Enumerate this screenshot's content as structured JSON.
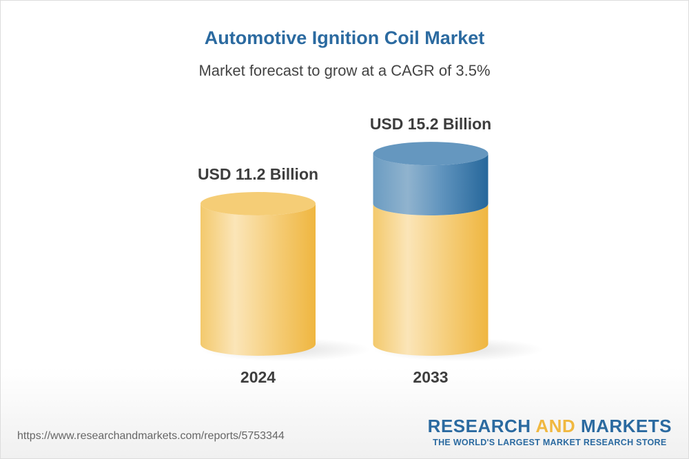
{
  "title": "Automotive Ignition Coil Market",
  "subtitle": "Market forecast to grow at a CAGR of 3.5%",
  "chart_data": {
    "type": "bar",
    "style": "3d-cylinder",
    "categories": [
      "2024",
      "2033"
    ],
    "values": [
      11.2,
      15.2
    ],
    "data_labels": [
      "USD 11.2 Billion",
      "USD 15.2 Billion"
    ],
    "unit": "USD Billion",
    "cagr": "3.5%",
    "colors": {
      "base": "#f2c05a",
      "growth": "#3b78aa"
    }
  },
  "footer": {
    "url": "https://www.researchandmarkets.com/reports/5753344",
    "logo_word1": "RESEARCH",
    "logo_word2": "AND",
    "logo_word3": "MARKETS",
    "logo_tagline": "THE WORLD'S LARGEST MARKET RESEARCH STORE"
  }
}
